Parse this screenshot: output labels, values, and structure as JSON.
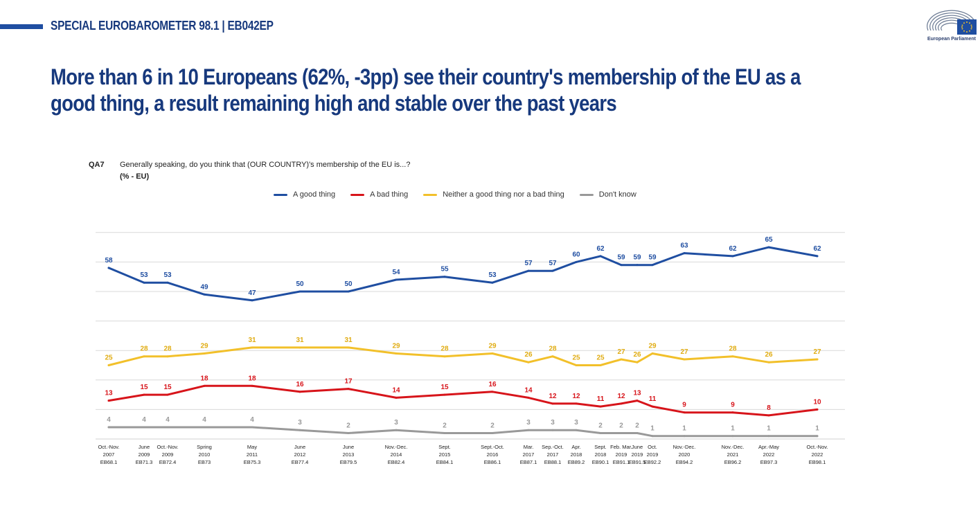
{
  "header": {
    "label": "SPECIAL EUROBAROMETER 98.1 | EB042EP",
    "logo_caption": "European Parliament"
  },
  "headline": "More than 6 in 10 Europeans (62%, -3pp) see their country's membership of the EU as a good thing, a result remaining high and stable over the past years",
  "question": {
    "code": "QA7",
    "text": "Generally speaking, do you think that (OUR COUNTRY)'s membership of the EU is...?",
    "unit": "(% - EU)"
  },
  "chart_data": {
    "type": "line",
    "ylim": [
      0,
      70
    ],
    "grid": true,
    "legend_position": "top-center",
    "categories": [
      {
        "lines": [
          "Oct.-Nov.",
          "2007",
          "EB68.1"
        ]
      },
      {
        "lines": [
          "June",
          "2009",
          "EB71.3"
        ]
      },
      {
        "lines": [
          "Oct.-Nov.",
          "2009",
          "EB72.4"
        ]
      },
      {
        "lines": [
          "Spring",
          "2010",
          "EB73"
        ]
      },
      {
        "lines": [
          "May",
          "2011",
          "EB75.3"
        ]
      },
      {
        "lines": [
          "June",
          "2012",
          "EB77.4"
        ]
      },
      {
        "lines": [
          "June",
          "2013",
          "EB79.5"
        ]
      },
      {
        "lines": [
          "Nov.-Dec.",
          "2014",
          "EB82.4"
        ]
      },
      {
        "lines": [
          "Sept.",
          "2015",
          "EB84.1"
        ]
      },
      {
        "lines": [
          "Sept.-Oct.",
          "2016",
          "EB86.1"
        ]
      },
      {
        "lines": [
          "Mar.",
          "2017",
          "EB87.1"
        ]
      },
      {
        "lines": [
          "Sep.-Oct.",
          "2017",
          "EB88.1"
        ]
      },
      {
        "lines": [
          "Apr.",
          "2018",
          "EB89.2"
        ]
      },
      {
        "lines": [
          "Sept.",
          "2018",
          "EB90.1"
        ]
      },
      {
        "lines": [
          "Feb. Mar.",
          "2019",
          "EB91.1"
        ]
      },
      {
        "lines": [
          "June",
          "2019",
          "EB91.5"
        ]
      },
      {
        "lines": [
          "Oct.",
          "2019",
          "EB92.2"
        ]
      },
      {
        "lines": [
          "Nov.-Dec.",
          "2020",
          "EB94.2"
        ]
      },
      {
        "lines": [
          "Nov.-Dec.",
          "2021",
          "EB96.2"
        ]
      },
      {
        "lines": [
          "Apr.-May",
          "2022",
          "EB97.3"
        ]
      },
      {
        "lines": [
          "Oct.-Nov.",
          "2022",
          "EB98.1"
        ]
      }
    ],
    "series": [
      {
        "name": "A good thing",
        "color": "#1f4ea1",
        "values": [
          58,
          53,
          53,
          49,
          47,
          50,
          50,
          54,
          55,
          53,
          57,
          57,
          60,
          62,
          59,
          59,
          59,
          63,
          62,
          65,
          62
        ]
      },
      {
        "name": "A bad thing",
        "color": "#d7141a",
        "values": [
          13,
          15,
          15,
          18,
          18,
          16,
          17,
          14,
          15,
          16,
          14,
          12,
          12,
          11,
          12,
          13,
          11,
          9,
          9,
          8,
          10
        ]
      },
      {
        "name": "Neither a good thing nor a bad thing",
        "color": "#f2c02a",
        "values": [
          25,
          28,
          28,
          29,
          31,
          31,
          31,
          29,
          28,
          29,
          26,
          28,
          25,
          25,
          27,
          26,
          29,
          27,
          28,
          26,
          27
        ]
      },
      {
        "name": "Don't know",
        "color": "#999999",
        "values": [
          4,
          4,
          4,
          4,
          4,
          3,
          2,
          3,
          2,
          2,
          3,
          3,
          3,
          2,
          2,
          2,
          1,
          1,
          1,
          1,
          1
        ]
      }
    ]
  }
}
